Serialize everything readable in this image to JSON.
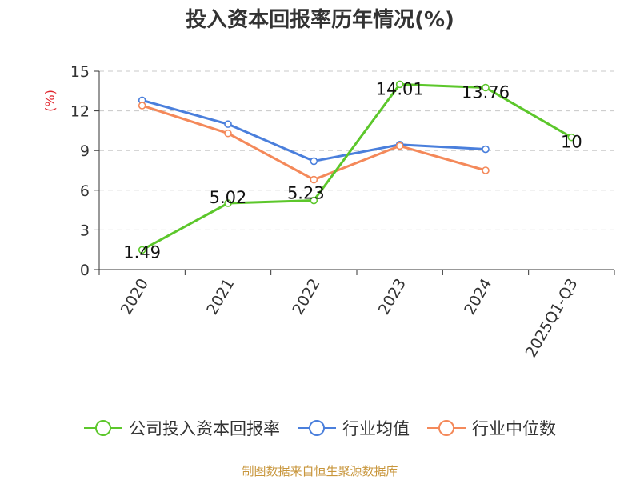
{
  "title": "投入资本回报率历年情况(%)",
  "source": "制图数据来自恒生聚源数据库",
  "chart_data": {
    "type": "line",
    "title": "投入资本回报率历年情况(%)",
    "ylabel": "(%)",
    "xlabel": "",
    "categories": [
      "2020",
      "2021",
      "2022",
      "2023",
      "2024",
      "2025Q1-Q3"
    ],
    "ylim": [
      0,
      15
    ],
    "yticks": [
      0,
      3,
      6,
      9,
      12,
      15
    ],
    "grid": "horizontal dashed",
    "legend_position": "bottom",
    "series": [
      {
        "name": "公司投入资本回报率",
        "color": "#5cc72b",
        "values": [
          1.49,
          5.02,
          5.23,
          14.01,
          13.76,
          10
        ],
        "labels": [
          "1.49",
          "5.02",
          "5.23",
          "14.01",
          "13.76",
          "10"
        ]
      },
      {
        "name": "行业均值",
        "color": "#4a7fdc",
        "values": [
          12.8,
          11.0,
          8.2,
          9.45,
          9.1,
          null
        ]
      },
      {
        "name": "行业中位数",
        "color": "#f4895a",
        "values": [
          12.4,
          10.3,
          6.8,
          9.35,
          7.5,
          null
        ]
      }
    ]
  }
}
